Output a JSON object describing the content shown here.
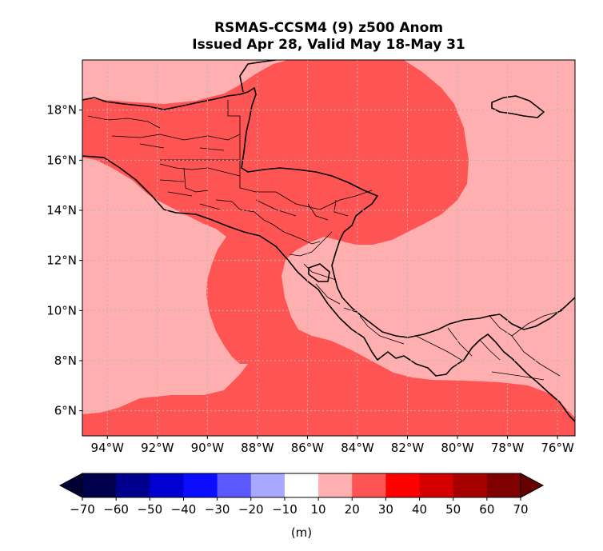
{
  "title": "RSMAS-CCSM4 (9) z500 Anom",
  "subtitle": "Issued Apr 28, Valid May 18-May 31",
  "map": {
    "lon_range": [
      -95,
      -75.3
    ],
    "lat_range": [
      5,
      20
    ],
    "lat_ticks": [
      {
        "value": 6,
        "label": "6°N"
      },
      {
        "value": 8,
        "label": "8°N"
      },
      {
        "value": 10,
        "label": "10°N"
      },
      {
        "value": 12,
        "label": "12°N"
      },
      {
        "value": 14,
        "label": "14°N"
      },
      {
        "value": 16,
        "label": "16°N"
      },
      {
        "value": 18,
        "label": "18°N"
      }
    ],
    "lon_ticks": [
      {
        "value": -94,
        "label": "94°W"
      },
      {
        "value": -92,
        "label": "92°W"
      },
      {
        "value": -90,
        "label": "90°W"
      },
      {
        "value": -88,
        "label": "88°W"
      },
      {
        "value": -86,
        "label": "86°W"
      },
      {
        "value": -84,
        "label": "84°W"
      },
      {
        "value": -82,
        "label": "82°W"
      },
      {
        "value": -80,
        "label": "80°W"
      },
      {
        "value": -78,
        "label": "78°W"
      },
      {
        "value": -76,
        "label": "76°W"
      }
    ],
    "grid": true,
    "field_levels": [
      {
        "range": "10-20 m",
        "color": "#ffafaf"
      },
      {
        "range": "20-30 m",
        "color": "#ff5454"
      }
    ]
  },
  "colorbar": {
    "unit_label": "(m)",
    "ticks": [
      "−70",
      "−60",
      "−50",
      "−40",
      "−30",
      "−20",
      "−10",
      "10",
      "20",
      "30",
      "40",
      "50",
      "60",
      "70"
    ],
    "colors": [
      "#00004c",
      "#00008e",
      "#0000d0",
      "#0c0cff",
      "#5959ff",
      "#a8a8ff",
      "#ffffff",
      "#ffafaf",
      "#ff5454",
      "#ff0000",
      "#d40000",
      "#a60000",
      "#7f0000"
    ],
    "extend_low_color": "#000033",
    "extend_high_color": "#660000"
  }
}
